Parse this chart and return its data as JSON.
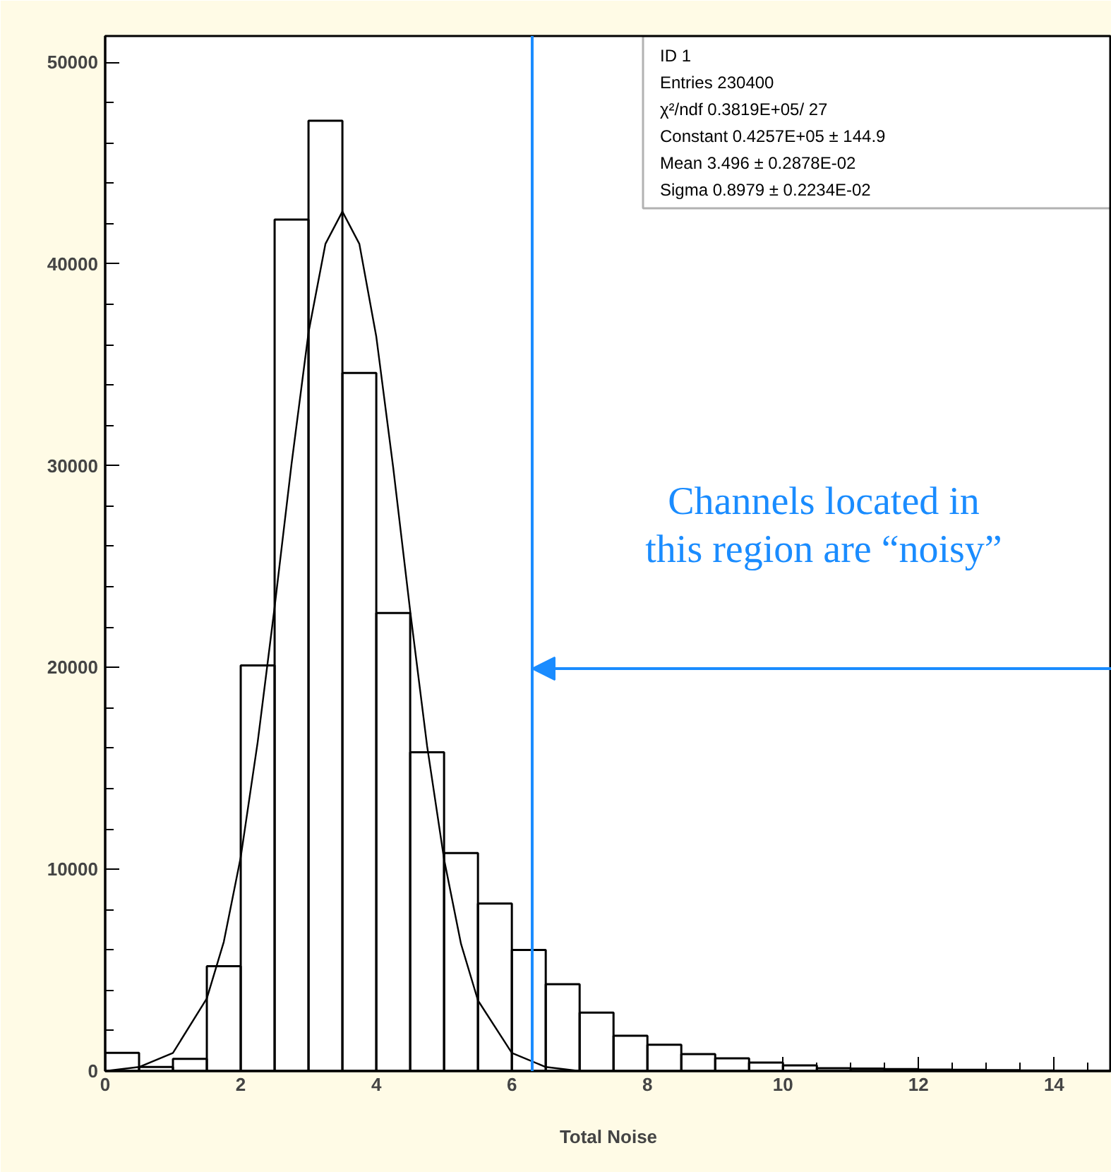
{
  "chart_data": {
    "type": "histogram",
    "xlabel": "Total Noise",
    "bins": [
      0,
      0.5,
      1,
      1.5,
      2,
      2.5,
      3,
      3.5,
      4,
      4.5,
      5,
      5.5,
      6,
      6.5,
      7,
      7.5,
      8,
      8.5,
      9,
      9.5,
      10,
      10.5,
      11,
      11.5,
      12,
      12.5,
      13,
      13.5,
      14,
      14.5,
      15
    ],
    "values": [
      900,
      200,
      600,
      5200,
      20100,
      42200,
      47100,
      34600,
      22700,
      15800,
      10800,
      8300,
      6000,
      4300,
      2900,
      1750,
      1300,
      840,
      630,
      420,
      280,
      140,
      120,
      100,
      70,
      60,
      40,
      30,
      20,
      20
    ],
    "color": "#000000",
    "series": [
      {
        "type": "line",
        "color": "#000000",
        "x": [
          0,
          0.5,
          1,
          1.5,
          1.75,
          2,
          2.25,
          2.5,
          2.75,
          3,
          3.25,
          3.5,
          3.75,
          4,
          4.25,
          4.5,
          4.75,
          5,
          5.25,
          5.5,
          6,
          6.5,
          7
        ],
        "values": [
          0,
          200,
          900,
          3600,
          6400,
          10600,
          16300,
          23000,
          30100,
          36600,
          41000,
          42600,
          41000,
          36400,
          29900,
          22800,
          16100,
          10500,
          6300,
          3500,
          900,
          200,
          0
        ]
      }
    ],
    "xlim": [
      0,
      14.85
    ],
    "ylim": [
      0,
      51300
    ],
    "xticks": [
      0,
      2,
      4,
      6,
      8,
      10,
      12,
      14
    ],
    "yticks": [
      0,
      10000,
      20000,
      30000,
      40000,
      50000
    ],
    "ref_lines": [
      {
        "axis": "x",
        "value": 6.3,
        "color": "#1a8cff"
      }
    ],
    "annotations": [
      "Channels located in\nthis region are “noisy”",
      "ID 1",
      "Entries 230400",
      "χ²/ndf 0.3819E+05/ 27",
      "Constant 0.4257E+05 ± 144.9",
      "Mean 3.496 ± 0.2878E-02",
      "Sigma 0.8979 ± 0.2234E-02"
    ],
    "grid": false
  }
}
